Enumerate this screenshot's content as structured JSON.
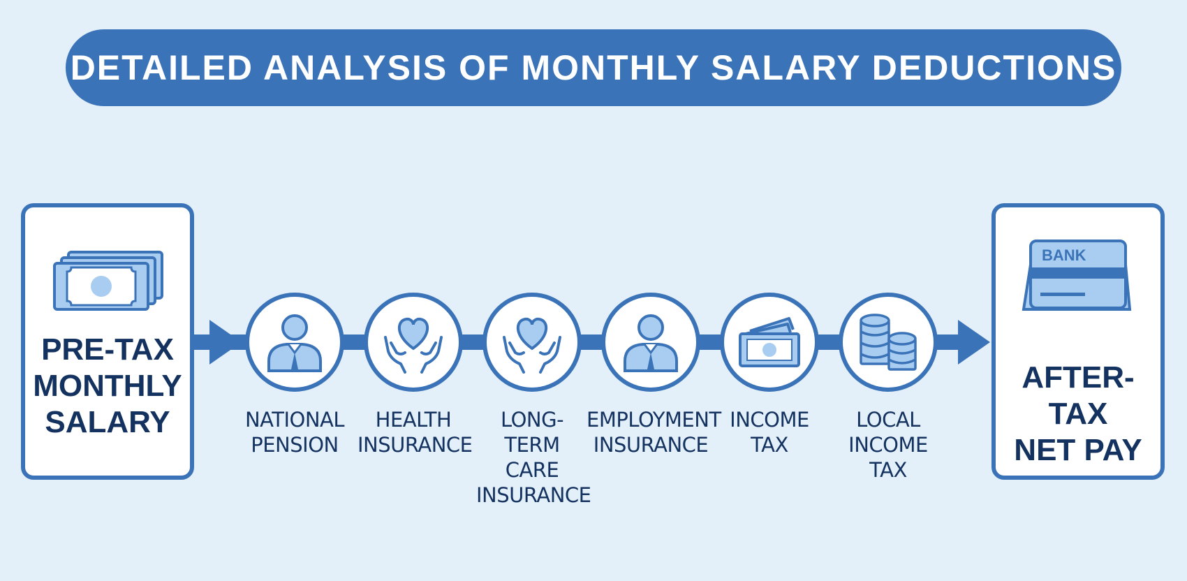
{
  "title": "DETAILED ANALYSIS OF MONTHLY SALARY DEDUCTIONS",
  "start": {
    "label": "PRE-TAX\nMONTHLY\nSALARY",
    "icon": "cash-stack-icon"
  },
  "end": {
    "label": "AFTER-TAX\nNET PAY",
    "icon": "bank-card-icon",
    "card_text": "BANK"
  },
  "deductions": [
    {
      "label": "NATIONAL\nPENSION",
      "icon": "person-icon"
    },
    {
      "label": "HEALTH\nINSURANCE",
      "icon": "heart-hands-icon"
    },
    {
      "label": "LONG-TERM\nCARE\nINSURANCE",
      "icon": "heart-hands-icon"
    },
    {
      "label": "EMPLOYMENT\nINSURANCE",
      "icon": "person-icon"
    },
    {
      "label": "INCOME\nTAX",
      "icon": "banknote-icon"
    },
    {
      "label": "LOCAL\nINCOME\nTAX",
      "icon": "coin-stacks-icon"
    }
  ],
  "colors": {
    "accent": "#3b73b8",
    "light": "#a9cdf0",
    "text": "#14325f",
    "background": "#e3eff9"
  }
}
